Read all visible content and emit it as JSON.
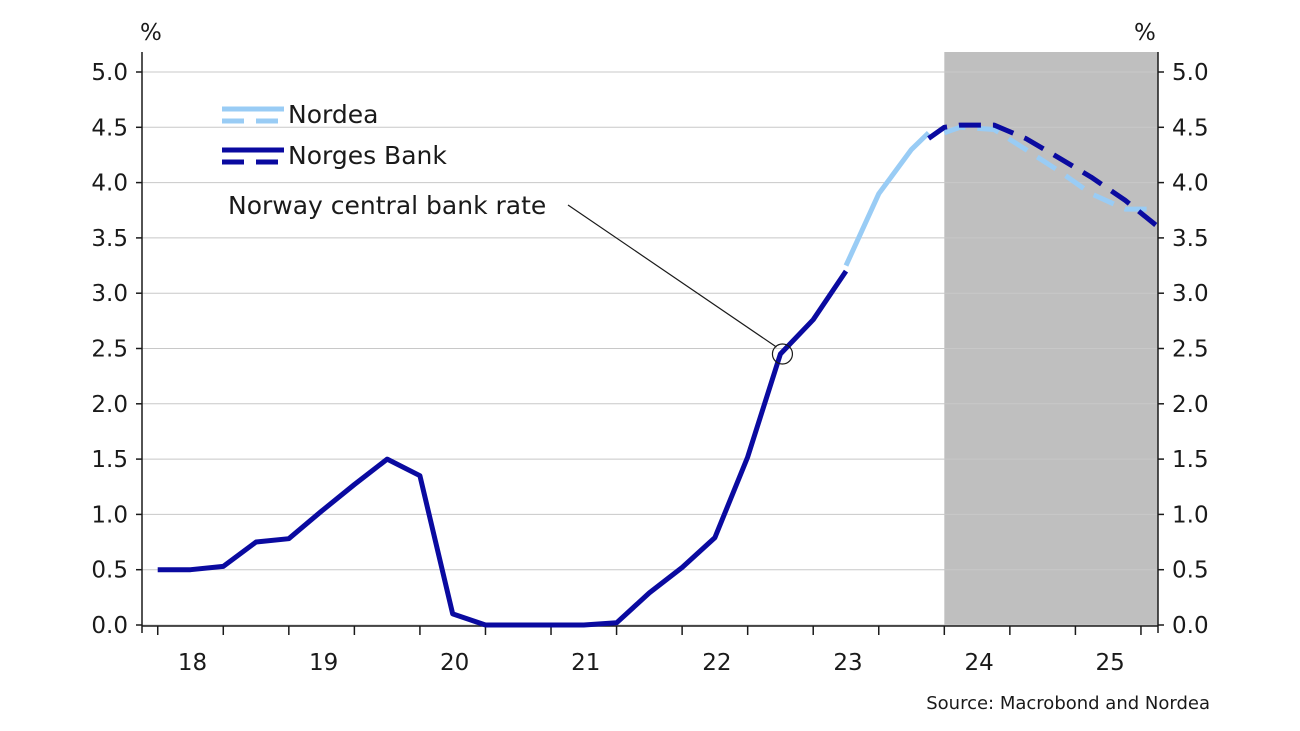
{
  "chart_data": {
    "type": "line",
    "title": "",
    "xlabel": "",
    "ylabel": "%",
    "ylabel_right": "%",
    "x_tick_labels": [
      "18",
      "19",
      "20",
      "21",
      "22",
      "23",
      "24",
      "25"
    ],
    "x_range": [
      2017.88,
      2025.63
    ],
    "ylim": [
      0,
      5.0
    ],
    "y_ticks": [
      "0.0",
      "0.5",
      "1.0",
      "1.5",
      "2.0",
      "2.5",
      "3.0",
      "3.5",
      "4.0",
      "4.5",
      "5.0"
    ],
    "grid": "horizontal",
    "legend_placement": "top-left",
    "forecast_shading": {
      "start": 2024.0,
      "end": 2025.63,
      "color": "#bfbfbf"
    },
    "colors": {
      "nordea": "#99ccf5",
      "norges_bank": "#0a0aa0"
    },
    "series": [
      {
        "name": "Nordea",
        "style": "solid",
        "x": [
          2023.25,
          2023.5,
          2023.75,
          2023.88
        ],
        "y": [
          3.25,
          3.9,
          4.3,
          4.45
        ]
      },
      {
        "name": "Nordea",
        "style": "dashed",
        "x": [
          2024.0,
          2024.12,
          2024.38,
          2024.62,
          2024.88,
          2025.12,
          2025.38,
          2025.63
        ],
        "y": [
          4.45,
          4.5,
          4.48,
          4.3,
          4.1,
          3.9,
          3.76,
          3.76
        ]
      },
      {
        "name": "Norges Bank",
        "style": "solid",
        "x": [
          2018.0,
          2018.25,
          2018.5,
          2018.75,
          2019.0,
          2019.25,
          2019.5,
          2019.75,
          2020.0,
          2020.25,
          2020.5,
          2020.75,
          2021.0,
          2021.25,
          2021.5,
          2021.75,
          2022.0,
          2022.25,
          2022.5,
          2022.75,
          2023.0,
          2023.25
        ],
        "y": [
          0.5,
          0.5,
          0.53,
          0.75,
          0.78,
          1.03,
          1.27,
          1.5,
          1.35,
          0.1,
          0.0,
          0.0,
          0.0,
          0.0,
          0.02,
          0.29,
          0.52,
          0.79,
          1.52,
          2.45,
          2.76,
          3.2
        ]
      },
      {
        "name": "Norges Bank",
        "style": "dashed",
        "x": [
          2023.88,
          2024.0,
          2024.12,
          2024.38,
          2024.62,
          2024.88,
          2025.12,
          2025.38,
          2025.63
        ],
        "y": [
          4.4,
          4.5,
          4.52,
          4.52,
          4.4,
          4.22,
          4.05,
          3.84,
          3.6
        ]
      }
    ],
    "legend": [
      "Nordea",
      "Norges Bank"
    ],
    "annotation": {
      "text": "Norway central bank rate",
      "point": {
        "x": 2022.75,
        "y": 2.45
      }
    },
    "source": "Source: Macrobond and Nordea"
  }
}
